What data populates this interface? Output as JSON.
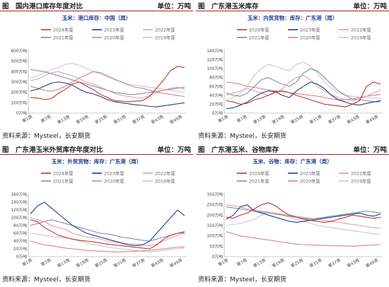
{
  "panels": [
    {
      "fig_label": "图",
      "title": "国内港口库存年度对比",
      "unit": "单位：万吨",
      "source": "资料来源：Mysteel，长安期货"
    },
    {
      "fig_label": "图",
      "title": "广东港玉米库存",
      "unit": "单位：万吨",
      "source": "资料来源：Mysteel，长安期货"
    },
    {
      "fig_label": "图",
      "title": "广东港玉米外贸库存年度对比",
      "unit": "单位：万吨",
      "source": "资料来源：Mysteel，长安期货"
    },
    {
      "fig_label": "图",
      "title": "广东港玉米、谷物库存",
      "unit": "单位：万吨",
      "source": "资料来源：Mysteel，长安期货"
    }
  ],
  "chart_data": [
    {
      "type": "line",
      "title": "玉米：港口库存：中国（周）",
      "x_labels": [
        "第1周",
        "第7周",
        "第13周",
        "第19周",
        "第25周",
        "第31周",
        "第37周",
        "第43周",
        "第49周"
      ],
      "y_ticks": [
        "0万吨",
        "100万吨",
        "200万吨",
        "300万吨",
        "400万吨",
        "500万吨",
        "600万吨"
      ],
      "ylim": [
        0,
        600
      ],
      "legend_position": "top",
      "grid": false,
      "series": [
        {
          "name": "2024年度",
          "color": "#c0392b",
          "values": [
            150,
            145,
            130,
            140,
            190,
            230,
            280,
            300,
            260,
            225,
            180,
            150,
            120,
            115,
            110,
            115,
            120,
            160,
            240,
            320,
            410,
            450,
            440
          ]
        },
        {
          "name": "2023年度",
          "color": "#1f3f8f",
          "values": [
            215,
            230,
            260,
            290,
            300,
            290,
            270,
            230,
            200,
            185,
            160,
            130,
            110,
            100,
            90,
            80,
            75,
            65,
            60,
            70,
            80,
            90,
            100
          ]
        },
        {
          "name": "2022年度",
          "color": "#e2a0a6",
          "values": [
            310,
            330,
            360,
            390,
            400,
            380,
            360,
            330,
            300,
            280,
            250,
            220,
            190,
            170,
            160,
            150,
            145,
            170,
            200,
            220,
            240,
            250,
            230
          ]
        },
        {
          "name": "2021年度",
          "color": "#7b8fb5",
          "values": [
            420,
            410,
            400,
            380,
            360,
            340,
            320,
            300,
            280,
            260,
            240,
            220,
            200,
            190,
            180,
            180,
            190,
            200,
            210,
            220,
            230,
            240,
            250
          ]
        },
        {
          "name": "2020年度",
          "color": "#d9838b",
          "values": [
            260,
            240,
            220,
            210,
            230,
            260,
            300,
            340,
            370,
            400,
            390,
            360,
            330,
            300,
            270,
            250,
            240,
            220,
            200,
            190,
            180,
            170,
            160
          ]
        },
        {
          "name": "2019年度",
          "color": "#c6c9cf",
          "values": [
            340,
            360,
            390,
            420,
            440,
            470,
            480,
            460,
            430,
            400,
            380,
            350,
            320,
            300,
            280,
            270,
            260,
            250,
            240,
            230,
            220,
            210,
            200
          ]
        }
      ]
    },
    {
      "type": "line",
      "title": "玉米：内贸货物：库存：广东港（周）",
      "x_labels": [
        "第1周",
        "第7周",
        "第13周",
        "第19周",
        "第25周",
        "第31周",
        "第37周",
        "第43周",
        "第49周"
      ],
      "y_ticks": [
        "0万吨",
        "20万吨",
        "40万吨",
        "60万吨",
        "80万吨",
        "100万吨",
        "120万吨",
        "140万吨"
      ],
      "ylim": [
        0,
        140
      ],
      "legend_position": "top",
      "grid": false,
      "series": [
        {
          "name": "2024年度",
          "color": "#c0392b",
          "values": [
            28,
            25,
            20,
            22,
            30,
            34,
            40,
            48,
            50,
            46,
            40,
            35,
            30,
            25,
            20,
            18,
            16,
            14,
            20,
            28,
            60,
            70,
            65
          ]
        },
        {
          "name": "2023年度",
          "color": "#1f3f8f",
          "values": [
            10,
            12,
            18,
            25,
            36,
            45,
            50,
            48,
            40,
            35,
            50,
            60,
            70,
            65,
            55,
            40,
            30,
            25,
            20,
            18,
            22,
            25,
            28
          ]
        },
        {
          "name": "2022年度",
          "color": "#e2a0a6",
          "values": [
            40,
            45,
            50,
            55,
            50,
            45,
            40,
            45,
            55,
            70,
            80,
            85,
            75,
            60,
            50,
            42,
            35,
            30,
            28,
            32,
            38,
            45,
            52
          ]
        },
        {
          "name": "2021年度",
          "color": "#7b8fb5",
          "values": [
            45,
            40,
            38,
            45,
            60,
            75,
            80,
            72,
            65,
            60,
            70,
            90,
            100,
            95,
            80,
            65,
            50,
            40,
            32,
            30,
            28,
            26,
            25
          ]
        },
        {
          "name": "2020年度",
          "color": "#d9838b",
          "values": [
            70,
            68,
            65,
            60,
            58,
            55,
            52,
            50,
            48,
            46,
            44,
            42,
            40,
            38,
            35,
            32,
            30,
            30,
            32,
            35,
            38,
            40,
            42
          ]
        },
        {
          "name": "2019年度",
          "color": "#c6c9cf",
          "values": [
            30,
            35,
            45,
            60,
            85,
            100,
            110,
            105,
            100,
            95,
            110,
            115,
            105,
            90,
            70,
            55,
            45,
            40,
            38,
            36,
            35,
            34,
            33
          ]
        }
      ]
    },
    {
      "type": "line",
      "title": "玉米：外贸货物：库存：广东港（周）",
      "x_labels": [
        "第1周",
        "第7周",
        "第13周",
        "第19周",
        "第25周",
        "第31周",
        "第37周",
        "第43周",
        "第49周"
      ],
      "y_ticks": [
        "0万吨",
        "20万吨",
        "40万吨",
        "60万吨",
        "80万吨",
        "100万吨",
        "120万吨",
        "140万吨",
        "160万吨"
      ],
      "ylim": [
        0,
        160
      ],
      "legend_position": "top",
      "grid": false,
      "series": [
        {
          "name": "2024年度",
          "color": "#c0392b",
          "values": [
            95,
            90,
            75,
            65,
            55,
            50,
            45,
            42,
            40,
            38,
            35,
            32,
            30,
            28,
            26,
            24,
            22,
            20,
            30,
            45,
            55,
            60,
            62
          ]
        },
        {
          "name": "2023年度",
          "color": "#1f3f8f",
          "values": [
            110,
            130,
            140,
            125,
            110,
            95,
            80,
            70,
            60,
            55,
            50,
            45,
            40,
            35,
            30,
            28,
            30,
            40,
            60,
            80,
            100,
            120,
            105
          ]
        },
        {
          "name": "2022年度",
          "color": "#e2a0a6",
          "values": [
            100,
            95,
            90,
            80,
            75,
            70,
            60,
            55,
            50,
            48,
            45,
            40,
            38,
            35,
            33,
            32,
            30,
            28,
            32,
            40,
            48,
            55,
            60
          ]
        },
        {
          "name": "2021年度",
          "color": "#7b8fb5",
          "values": [
            80,
            85,
            90,
            95,
            90,
            85,
            80,
            75,
            70,
            65,
            60,
            58,
            55,
            50,
            48,
            45,
            42,
            40,
            45,
            50,
            55,
            60,
            65
          ]
        },
        {
          "name": "2020年度",
          "color": "#d9838b",
          "values": [
            40,
            35,
            30,
            28,
            25,
            22,
            20,
            18,
            16,
            15,
            14,
            13,
            12,
            12,
            13,
            14,
            15,
            16,
            18,
            20,
            22,
            24,
            25
          ]
        },
        {
          "name": "2019年度",
          "color": "#c6c9cf",
          "values": [
            60,
            58,
            55,
            52,
            50,
            48,
            45,
            40,
            35,
            30,
            28,
            25,
            22,
            20,
            18,
            16,
            14,
            12,
            14,
            16,
            18,
            20,
            22
          ]
        }
      ]
    },
    {
      "type": "line",
      "title": "玉米、谷物：库存：广东港（周）",
      "x_labels": [
        "第1周",
        "第7周",
        "第13周",
        "第19周",
        "第25周",
        "第31周",
        "第37周",
        "第43周",
        "第49周"
      ],
      "y_ticks": [
        "0万吨",
        "50万吨",
        "100万吨",
        "150万吨",
        "200万吨",
        "250万吨",
        "300万吨"
      ],
      "ylim": [
        0,
        300
      ],
      "legend_position": "top",
      "grid": false,
      "series": [
        {
          "name": "2024年度",
          "color": "#c0392b",
          "values": [
            190,
            185,
            200,
            210,
            230,
            250,
            260,
            245,
            220,
            200,
            190,
            180,
            175,
            170,
            165,
            170,
            180,
            190,
            200,
            195,
            190,
            185,
            190
          ]
        },
        {
          "name": "2023年度",
          "color": "#1f3f8f",
          "values": [
            180,
            200,
            240,
            250,
            220,
            210,
            200,
            190,
            180,
            170,
            165,
            170,
            175,
            180,
            185,
            190,
            195,
            200,
            205,
            210,
            200,
            195,
            205
          ]
        },
        {
          "name": "2022年度",
          "color": "#e2a0a6",
          "values": [
            250,
            245,
            240,
            230,
            225,
            220,
            215,
            210,
            205,
            200,
            195,
            190,
            185,
            180,
            175,
            170,
            165,
            160,
            155,
            150,
            145,
            140,
            135
          ]
        },
        {
          "name": "2021年度",
          "color": "#7b8fb5",
          "values": [
            240,
            235,
            230,
            225,
            220,
            215,
            210,
            205,
            200,
            195,
            190,
            185,
            180,
            185,
            190,
            195,
            200,
            205,
            210,
            215,
            220,
            215,
            210
          ]
        },
        {
          "name": "2020年度",
          "color": "#d9838b",
          "values": [
            120,
            110,
            100,
            95,
            90,
            85,
            80,
            75,
            70,
            65,
            60,
            58,
            56,
            55,
            54,
            53,
            52,
            51,
            50,
            52,
            54,
            56,
            58
          ]
        },
        {
          "name": "2019年度",
          "color": "#c6c9cf",
          "values": [
            150,
            155,
            160,
            170,
            180,
            200,
            215,
            210,
            200,
            190,
            180,
            170,
            160,
            150,
            145,
            140,
            135,
            130,
            125,
            120,
            115,
            110,
            108
          ]
        }
      ]
    }
  ]
}
